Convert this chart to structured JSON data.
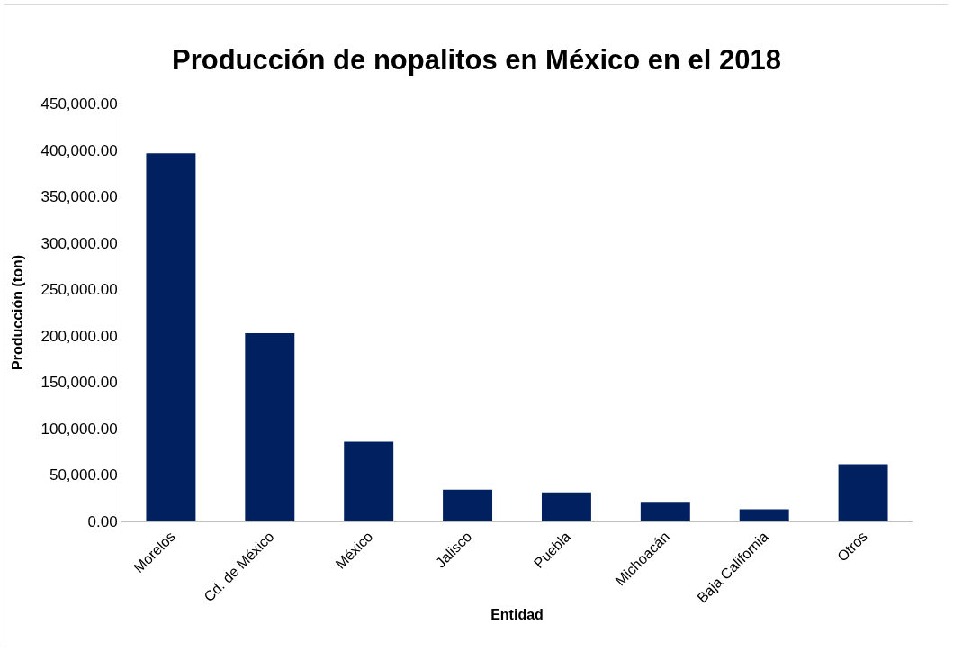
{
  "chart_data": {
    "type": "bar",
    "title": "Producción de nopalitos en México en el 2018",
    "xlabel": "Entidad",
    "ylabel": "Producción (ton)",
    "categories": [
      "Morelos",
      "Cd. de México",
      "México",
      "Jalisco",
      "Puebla",
      "Michoacán",
      "Baja California",
      "Otros"
    ],
    "values": [
      396500,
      202800,
      85800,
      34300,
      31300,
      21200,
      13100,
      61500
    ],
    "color": "#002060",
    "ylim": [
      0,
      450000
    ],
    "yticks": [
      {
        "value": 0,
        "label": "0.00"
      },
      {
        "value": 50000,
        "label": "50,000.00"
      },
      {
        "value": 100000,
        "label": "100,000.00"
      },
      {
        "value": 150000,
        "label": "150,000.00"
      },
      {
        "value": 200000,
        "label": "200,000.00"
      },
      {
        "value": 250000,
        "label": "250,000.00"
      },
      {
        "value": 300000,
        "label": "300,000.00"
      },
      {
        "value": 350000,
        "label": "350,000.00"
      },
      {
        "value": 400000,
        "label": "400,000.00"
      },
      {
        "value": 450000,
        "label": "450,000.00"
      }
    ],
    "grid": false,
    "legend": false
  }
}
